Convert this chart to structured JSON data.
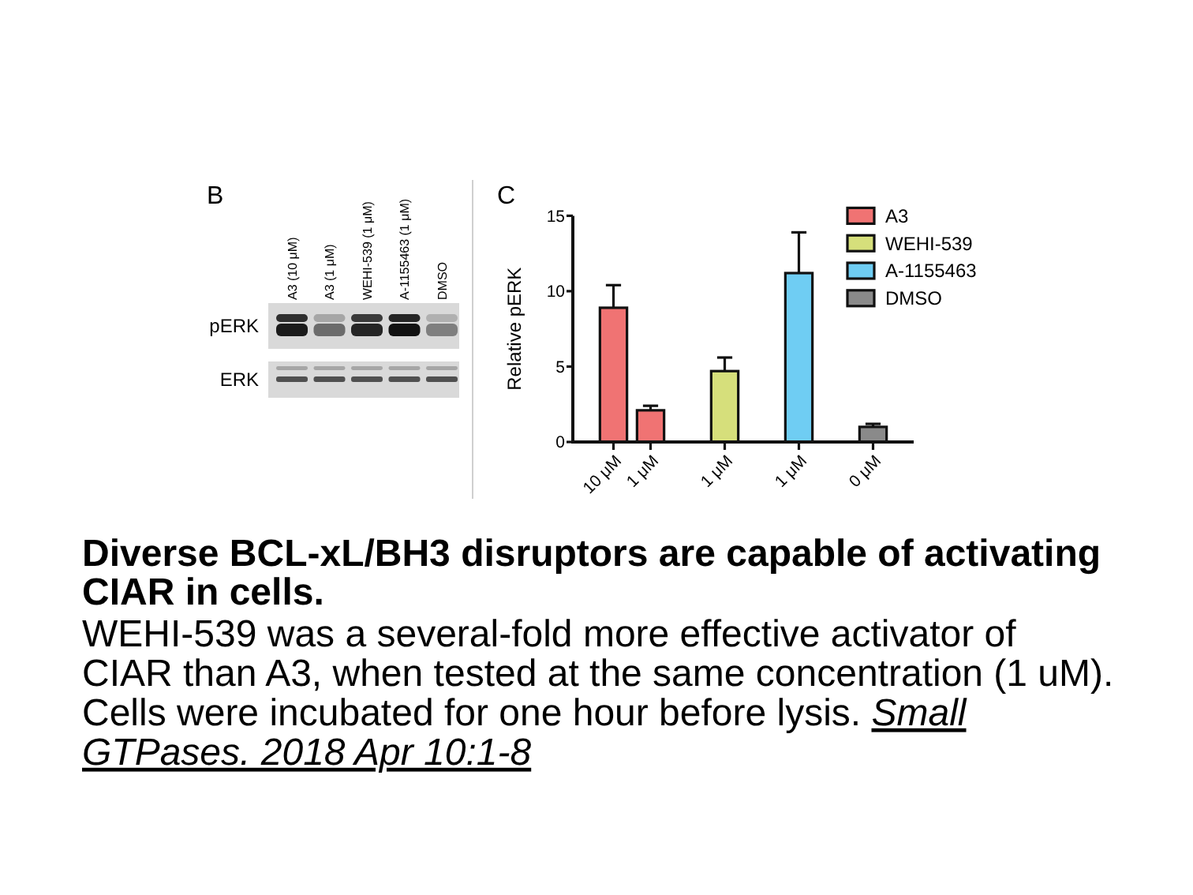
{
  "chart_data": [
    {
      "type": "other",
      "title": "B",
      "categories": [
        "A3 (10 μM)",
        "A3 (1 μM)",
        "WEHI-539 (1 μM)",
        "A-1155463 (1 μM)",
        "DMSO"
      ],
      "annotations": [
        "pERK",
        "ERK"
      ]
    },
    {
      "type": "bar",
      "title": "C",
      "ylabel": "Relative pERK",
      "categories": [
        "10 μM",
        "1 μM",
        null,
        "1 μM",
        null,
        "1 μM",
        null,
        "0 μM"
      ],
      "series": [
        {
          "name": "A3",
          "color": "#f07373",
          "values": [
            8.9,
            2.1,
            null,
            null,
            null,
            null,
            null,
            null
          ],
          "errors": [
            [
              8.9,
              10.4
            ],
            [
              2.1,
              2.4
            ],
            null,
            null,
            null,
            null,
            null,
            null
          ]
        },
        {
          "name": "WEHI-539",
          "color": "#d6df7b",
          "values": [
            null,
            null,
            null,
            4.7,
            null,
            null,
            null,
            null
          ],
          "errors": [
            null,
            null,
            null,
            [
              4.7,
              5.6
            ],
            null,
            null,
            null,
            null
          ]
        },
        {
          "name": "A-1155463",
          "color": "#6fcdf3",
          "values": [
            null,
            null,
            null,
            null,
            null,
            11.2,
            null,
            null
          ],
          "errors": [
            null,
            null,
            null,
            null,
            null,
            [
              11.2,
              13.9
            ],
            null,
            null
          ]
        },
        {
          "name": "DMSO",
          "color": "#8a8a8a",
          "values": [
            null,
            null,
            null,
            null,
            null,
            null,
            null,
            1.0
          ],
          "errors": [
            null,
            null,
            null,
            null,
            null,
            null,
            null,
            [
              1.0,
              1.2
            ]
          ]
        }
      ],
      "ylim": [
        0,
        15
      ],
      "yticks": [
        0,
        5,
        10,
        15
      ],
      "legend": "top right"
    },
    {
      "type": "other",
      "title": "Diverse BCL-xL/BH3 disruptors are capable of activating CIAR in cells.",
      "annotations": [
        "WEHI-539 was a several-fold more effective activator of CIAR than A3, when tested at the same concentration (1 uM). Cells were incubated for one hour before lysis.",
        "Small GTPases. 2018 Apr 10:1-8"
      ]
    }
  ]
}
